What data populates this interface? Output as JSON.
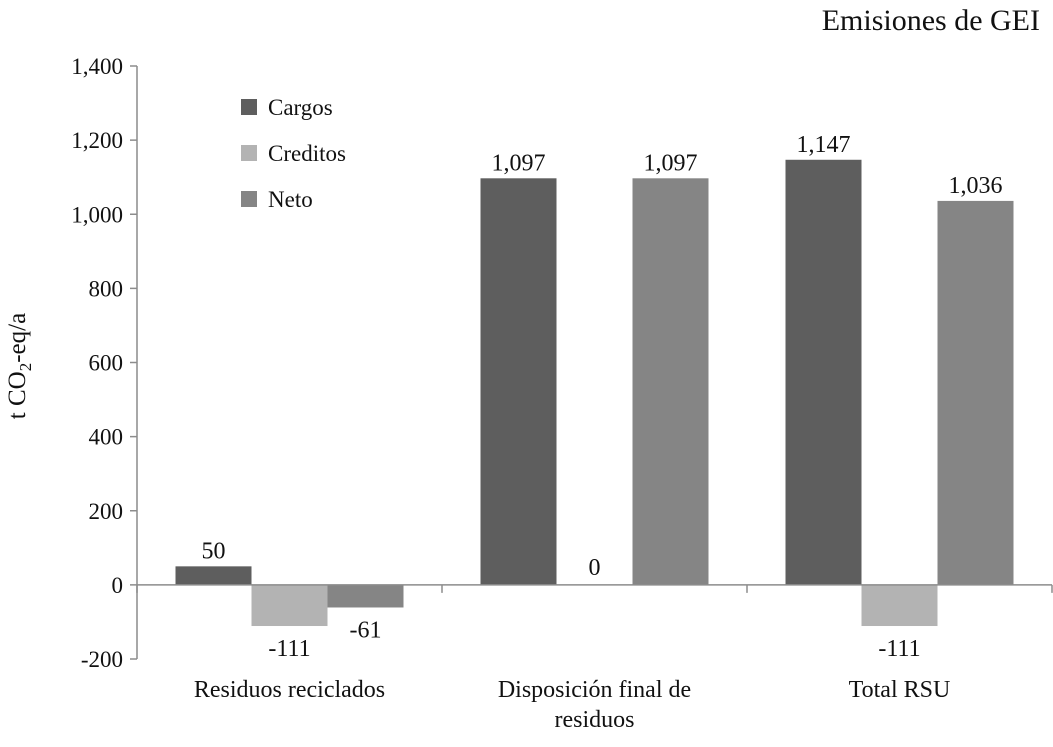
{
  "chart_data": {
    "type": "bar",
    "title": "Emisiones de GEI",
    "ylabel": "t CO2-eq/a",
    "ylabel_parts": {
      "pre": "t CO",
      "sub": "2",
      "post": "-eq/a"
    },
    "ylim": [
      -200,
      1400
    ],
    "yticks": [
      -200,
      0,
      200,
      400,
      600,
      800,
      1000,
      1200,
      1400
    ],
    "ytick_labels": [
      "-200",
      "0",
      "200",
      "400",
      "600",
      "800",
      "1,000",
      "1,200",
      "1,400"
    ],
    "categories": [
      [
        "Residuos reciclados"
      ],
      [
        "Disposición final de",
        "residuos"
      ],
      [
        "Total RSU"
      ]
    ],
    "series": [
      {
        "name": "Cargos",
        "values": [
          50,
          1097,
          1147
        ],
        "labels": [
          "50",
          "1,097",
          "1,147"
        ],
        "color": "#5e5e5e"
      },
      {
        "name": "Creditos",
        "values": [
          -111,
          0,
          -111
        ],
        "labels": [
          "-111",
          "0",
          "-111"
        ],
        "color": "#b3b3b3"
      },
      {
        "name": "Neto",
        "values": [
          -61,
          1097,
          1036
        ],
        "labels": [
          "-61",
          "1,097",
          "1,036"
        ],
        "color": "#858585"
      }
    ],
    "legend_position": "top-left",
    "grid": false
  }
}
